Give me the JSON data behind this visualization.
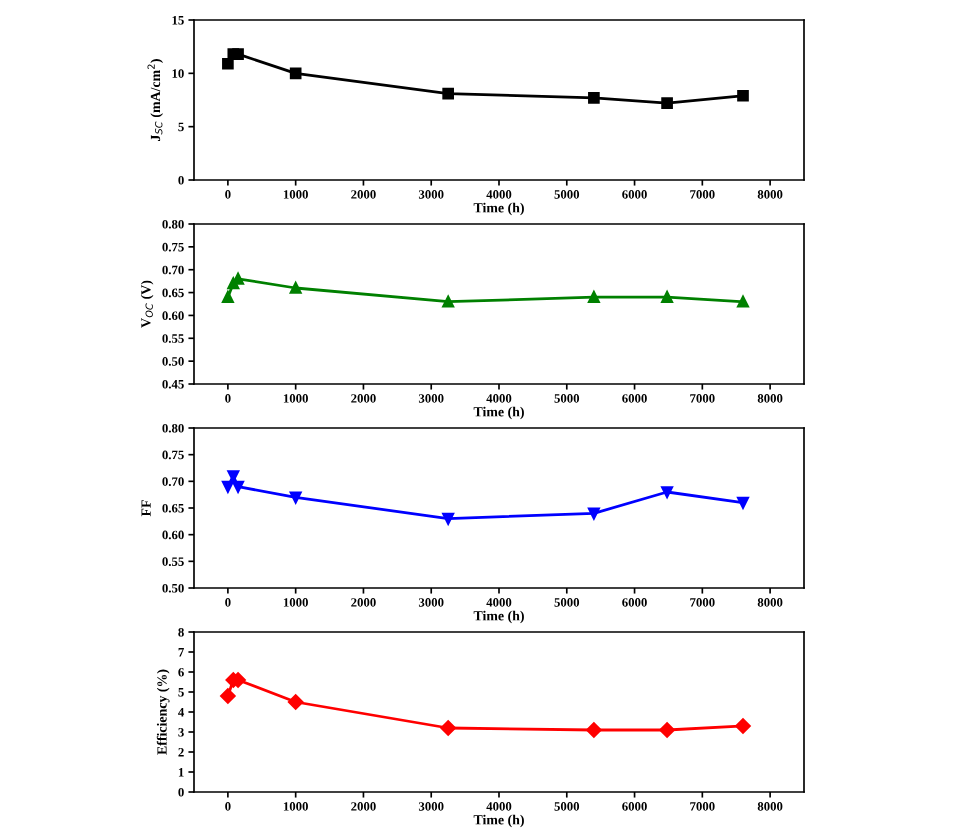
{
  "chart_data": [
    {
      "type": "line",
      "xlabel": "Time (h)",
      "ylabel": "J$_{SC}$ (mA/cm$^{2}$)",
      "x": [
        0,
        80,
        150,
        1000,
        3250,
        5400,
        6480,
        7600
      ],
      "series": [
        {
          "color": "#000000",
          "values": [
            10.9,
            11.8,
            11.8,
            10.0,
            8.1,
            7.7,
            7.2,
            7.9
          ]
        }
      ],
      "marker": "square",
      "xlim": [
        -500,
        8500
      ],
      "xticks": [
        0,
        1000,
        2000,
        3000,
        4000,
        5000,
        6000,
        7000,
        8000
      ],
      "ylim": [
        0,
        15
      ],
      "yticks": [
        0,
        5,
        10,
        15
      ],
      "grid": false,
      "legend": false
    },
    {
      "type": "line",
      "xlabel": "Time (h)",
      "ylabel": "V$_{OC}$ (V)",
      "x": [
        0,
        80,
        150,
        1000,
        3250,
        5400,
        6480,
        7600
      ],
      "series": [
        {
          "color": "#008000",
          "values": [
            0.64,
            0.67,
            0.68,
            0.66,
            0.63,
            0.64,
            0.64,
            0.63
          ]
        }
      ],
      "marker": "triangle",
      "xlim": [
        -500,
        8500
      ],
      "xticks": [
        0,
        1000,
        2000,
        3000,
        4000,
        5000,
        6000,
        7000,
        8000
      ],
      "ylim": [
        0.45,
        0.8
      ],
      "yticks": [
        {
          "value": 0.45,
          "label": "0.45"
        },
        {
          "value": 0.5,
          "label": "0.50"
        },
        {
          "value": 0.55,
          "label": "0.55"
        },
        {
          "value": 0.6,
          "label": "0.60"
        },
        {
          "value": 0.65,
          "label": "0.65"
        },
        {
          "value": 0.7,
          "label": "0.70"
        },
        {
          "value": 0.75,
          "label": "0.75"
        },
        {
          "value": 0.8,
          "label": "0.80"
        }
      ],
      "grid": false,
      "legend": false
    },
    {
      "type": "line",
      "xlabel": "Time (h)",
      "ylabel": "FF",
      "x": [
        0,
        80,
        150,
        1000,
        3250,
        5400,
        6480,
        7600
      ],
      "series": [
        {
          "color": "#0000ff",
          "values": [
            0.69,
            0.71,
            0.69,
            0.67,
            0.63,
            0.64,
            0.68,
            0.66
          ]
        }
      ],
      "marker": "triangle_down",
      "xlim": [
        -500,
        8500
      ],
      "xticks": [
        0,
        1000,
        2000,
        3000,
        4000,
        5000,
        6000,
        7000,
        8000
      ],
      "ylim": [
        0.5,
        0.8
      ],
      "yticks": [
        {
          "value": 0.5,
          "label": "0.50"
        },
        {
          "value": 0.55,
          "label": "0.55"
        },
        {
          "value": 0.6,
          "label": "0.60"
        },
        {
          "value": 0.65,
          "label": "0.65"
        },
        {
          "value": 0.7,
          "label": "0.70"
        },
        {
          "value": 0.75,
          "label": "0.75"
        },
        {
          "value": 0.8,
          "label": "0.80"
        }
      ],
      "grid": false,
      "legend": false
    },
    {
      "type": "line",
      "xlabel": "Time (h)",
      "ylabel": "Efficiency (%)",
      "x": [
        0,
        80,
        150,
        1000,
        3250,
        5400,
        6480,
        7600
      ],
      "series": [
        {
          "color": "#ff0000",
          "values": [
            4.8,
            5.6,
            5.6,
            4.5,
            3.2,
            3.1,
            3.1,
            3.3
          ]
        }
      ],
      "marker": "diamond",
      "xlim": [
        -500,
        8500
      ],
      "xticks": [
        0,
        1000,
        2000,
        3000,
        4000,
        5000,
        6000,
        7000,
        8000
      ],
      "ylim": [
        0,
        8
      ],
      "yticks": [
        0,
        1,
        2,
        3,
        4,
        5,
        6,
        7,
        8
      ],
      "grid": false,
      "legend": false
    }
  ]
}
